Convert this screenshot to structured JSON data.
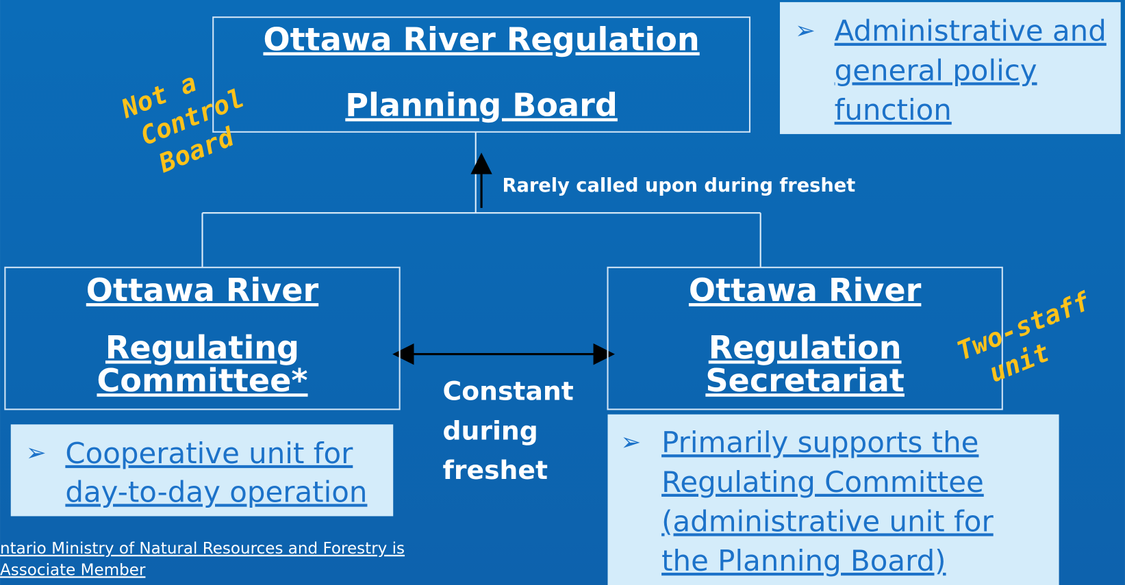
{
  "board": {
    "lines": [
      "Ottawa River Regulation",
      "Planning Board"
    ]
  },
  "board_note": {
    "lines": [
      "Administrative and",
      "general policy",
      "function"
    ]
  },
  "board_annotation": {
    "lines": [
      "Not a",
      "Control",
      "Board"
    ]
  },
  "upward_link": {
    "label": "Rarely called upon during freshet"
  },
  "committee": {
    "lines": [
      "Ottawa River",
      "Regulating",
      "Committee*"
    ]
  },
  "committee_note": {
    "lines": [
      "Cooperative unit for",
      "day-to-day operation"
    ]
  },
  "secretariat": {
    "lines": [
      "Ottawa River",
      "Regulation",
      "Secretariat"
    ]
  },
  "secretariat_annotation": {
    "lines": [
      "Two-staff",
      "unit"
    ]
  },
  "secretariat_note": {
    "lines": [
      "Primarily supports the",
      "Regulating Committee",
      "(administrative unit for",
      "the Planning Board)"
    ]
  },
  "side_link": {
    "lines": [
      "Constant",
      "during",
      "freshet"
    ]
  },
  "footnote": {
    "lines": [
      "ntario Ministry of Natural Resources and Forestry is",
      "Associate Member"
    ]
  },
  "bullet": "➢"
}
